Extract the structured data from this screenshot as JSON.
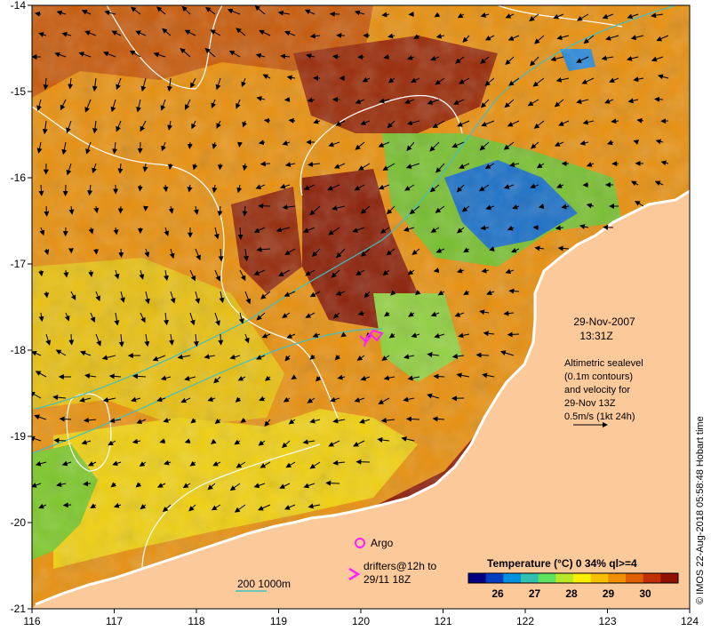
{
  "map": {
    "x_axis": {
      "ticks": [
        "116",
        "117",
        "118",
        "119",
        "120",
        "121",
        "122",
        "123",
        "124"
      ]
    },
    "y_axis": {
      "ticks": [
        "-14",
        "-15",
        "-16",
        "-17",
        "-18",
        "-19",
        "-20",
        "-21"
      ]
    },
    "colors": {
      "land": "#fcc99b",
      "cool": "#1060c0",
      "mid": "#f0d000",
      "warm": "#e07810",
      "hot": "#8c1c08",
      "coast": "#ffffff",
      "contour": "#ffffff",
      "isobath": "#40c0c0",
      "markers": "#ff20ff"
    },
    "date": "29-Nov-2007",
    "time": "13:31Z",
    "altimetry_lines": [
      "Altimetric sealevel",
      "(0.1m contours)",
      "and velocity for",
      "29-Nov 13Z",
      "0.5m/s (1kt 24h)"
    ],
    "legend": {
      "argo": "Argo",
      "drifters_line1": "drifters@12h to",
      "drifters_line2": "29/11 18Z"
    },
    "isobath_label": "200  1000m",
    "colorbar": {
      "title": "Temperature (°C) 0 34% ql>=4",
      "ticks": [
        "26",
        "27",
        "28",
        "29",
        "30"
      ],
      "colors": [
        "#000080",
        "#0040c0",
        "#0090e0",
        "#30c0b0",
        "#60e060",
        "#b8e828",
        "#f8f000",
        "#f8c000",
        "#f09000",
        "#e06000",
        "#c03000",
        "#901000"
      ]
    },
    "credit": "© IMOS 22-Aug-2018 05:58:48 Hobart time"
  }
}
